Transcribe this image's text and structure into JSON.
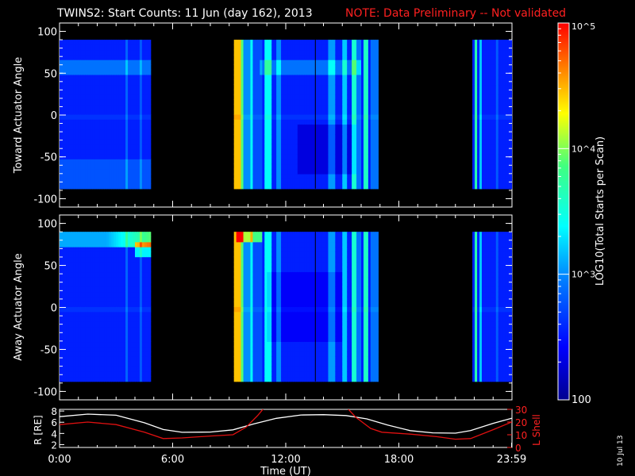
{
  "header": {
    "title": "TWINS2: Start Counts: 11 Jun (day 162), 2013",
    "note": "NOTE: Data Preliminary -- Not validated",
    "note_color": "#ff2020",
    "stamp": "10 Jul 13"
  },
  "colorbar": {
    "label": "LOG10(Total Starts per Scan)",
    "tick_labels": [
      "100",
      "10^3",
      "10^4",
      "10^5"
    ]
  },
  "chart_data": [
    {
      "type": "heatmap",
      "ylabel": "Toward Actuator Angle",
      "ylim": [
        -110,
        110
      ],
      "yticks": [
        100,
        50,
        0,
        -50,
        -100
      ],
      "data_ylim": [
        -88,
        90
      ],
      "xlim": [
        0,
        24
      ],
      "scale": "log10",
      "clim": [
        2,
        5
      ],
      "data_intervals_hours": [
        [
          0,
          4.83
        ],
        [
          9.25,
          16.9
        ],
        [
          21.9,
          23.98
        ]
      ],
      "profile": "toward"
    },
    {
      "type": "heatmap",
      "ylabel": "Away Actuator Angle",
      "ylim": [
        -110,
        110
      ],
      "yticks": [
        100,
        50,
        0,
        -50,
        -100
      ],
      "data_ylim": [
        -88,
        90
      ],
      "xlim": [
        0,
        24
      ],
      "scale": "log10",
      "clim": [
        2,
        5
      ],
      "data_intervals_hours": [
        [
          0,
          4.83
        ],
        [
          9.25,
          16.9
        ],
        [
          21.9,
          23.98
        ]
      ],
      "profile": "away"
    },
    {
      "type": "line",
      "xlabel": "Time (UT)",
      "xticks": [
        "0:00",
        "6:00",
        "12:00",
        "18:00",
        "23:59"
      ],
      "xlim": [
        0,
        24
      ],
      "ylabel_left": "R [RE]",
      "ylim_left": [
        1.5,
        8.3
      ],
      "yticks_left": [
        8,
        6,
        4,
        2
      ],
      "ylabel_right": "L Shell",
      "ylim_right": [
        0,
        30
      ],
      "yticks_right": [
        30,
        20,
        10,
        0
      ],
      "series": [
        {
          "name": "R",
          "axis": "left",
          "color": "#ffffff",
          "x": [
            0,
            1.5,
            3,
            4.5,
            5.5,
            6.5,
            8,
            9.2,
            10.3,
            11.5,
            12.8,
            14,
            15.2,
            16.3,
            17.4,
            18.6,
            19.8,
            21,
            21.8,
            23,
            23.98
          ],
          "y": [
            7.0,
            7.45,
            7.25,
            5.9,
            4.7,
            4.2,
            4.25,
            4.65,
            5.7,
            6.7,
            7.3,
            7.35,
            7.2,
            6.6,
            5.5,
            4.5,
            4.1,
            4.05,
            4.5,
            5.8,
            6.7
          ]
        },
        {
          "name": "L Shell",
          "axis": "right",
          "color": "#e01010",
          "x": [
            0,
            1.5,
            3,
            4.5,
            5.5,
            6.5,
            8,
            9.2,
            9.9,
            10.5,
            10.9,
            15.2,
            15.7,
            16.5,
            17.1,
            18.6,
            20,
            21,
            21.8,
            23,
            23.98
          ],
          "y": [
            18,
            20,
            18,
            12,
            7,
            7.5,
            9,
            10,
            16,
            25,
            32,
            32,
            24,
            15,
            12,
            10.5,
            8.5,
            6.5,
            7,
            14,
            20
          ]
        }
      ]
    }
  ]
}
